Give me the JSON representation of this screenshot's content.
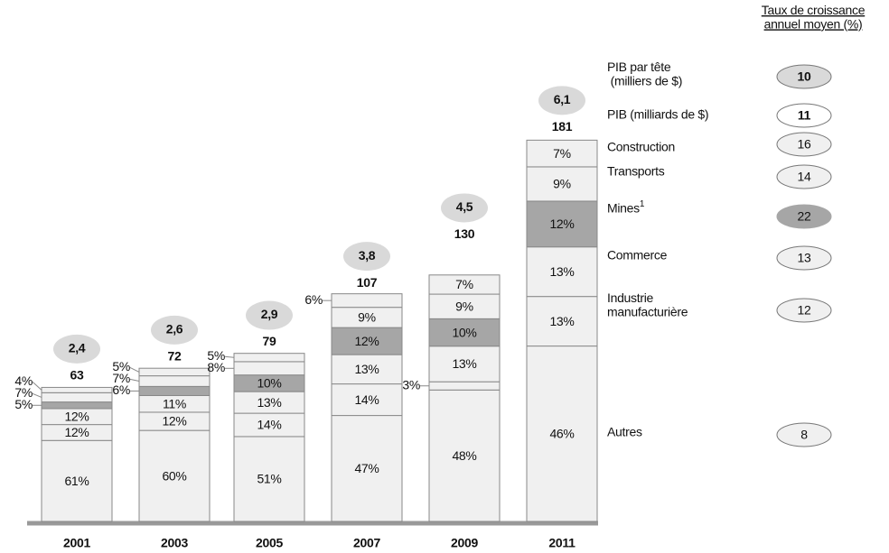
{
  "chart_data": {
    "type": "bar",
    "legend_title": "Taux de croissance\nannuel moyen (%)",
    "categories": [
      "2001",
      "2003",
      "2005",
      "2007",
      "2009",
      "2011"
    ],
    "gdp_per_capita": {
      "name": "PIB par tête\n (milliers de $)",
      "growth": 10,
      "color": "#d9d9d9",
      "values": [
        2.4,
        2.6,
        2.9,
        3.8,
        4.5,
        6.1
      ],
      "value_labels": [
        "2,4",
        "2,6",
        "2,9",
        "3,8",
        "4,5",
        "6,1"
      ]
    },
    "gdp": {
      "name": "PIB  (milliards de $)",
      "growth": 11,
      "color": "#ffffff",
      "values": [
        63,
        72,
        79,
        107,
        130,
        181
      ]
    },
    "series": [
      {
        "name": "Autres",
        "growth": 8,
        "color": "#f0f0f0",
        "values": [
          61,
          60,
          51,
          47,
          48,
          46
        ],
        "value_labels": [
          "61%",
          "60%",
          "51%",
          "47%",
          "48%",
          "46%"
        ]
      },
      {
        "name": "Industrie\nmanufacturière",
        "growth": 12,
        "color": "#f0f0f0",
        "values": [
          12,
          12,
          14,
          14,
          3,
          13
        ],
        "value_labels": [
          "12%",
          "12%",
          "14%",
          "14%",
          "3%",
          "13%"
        ]
      },
      {
        "name": "Commerce",
        "growth": 13,
        "color": "#f0f0f0",
        "values": [
          12,
          11,
          13,
          13,
          13,
          13
        ],
        "value_labels": [
          "12%",
          "11%",
          "13%",
          "13%",
          "13%",
          "13%"
        ]
      },
      {
        "name": "Mines",
        "note": "1",
        "growth": 22,
        "color": "#a6a6a6",
        "values": [
          5,
          6,
          10,
          12,
          10,
          12
        ],
        "value_labels": [
          "5%",
          "6%",
          "10%",
          "12%",
          "10%",
          "12%"
        ]
      },
      {
        "name": "Transports",
        "growth": 14,
        "color": "#f0f0f0",
        "values": [
          7,
          7,
          8,
          9,
          9,
          9
        ],
        "value_labels": [
          "7%",
          "7%",
          "8%",
          "9%",
          "9%",
          "9%"
        ]
      },
      {
        "name": "Construction",
        "growth": 16,
        "color": "#f0f0f0",
        "values": [
          4,
          5,
          5,
          6,
          7,
          7
        ],
        "value_labels": [
          "4%",
          "5%",
          "5%",
          "6%",
          "7%",
          "7%"
        ]
      }
    ]
  }
}
